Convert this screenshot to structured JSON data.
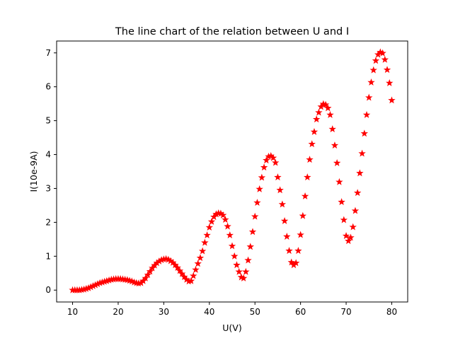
{
  "chart_data": {
    "type": "scatter",
    "title": "The line chart of the relation between U and I",
    "xlabel": "U(V)",
    "ylabel": "I(10e-9A)",
    "xlim": [
      6.5,
      83.5
    ],
    "ylim": [
      -0.35,
      7.35
    ],
    "xticks": [
      10,
      20,
      30,
      40,
      50,
      60,
      70,
      80
    ],
    "yticks": [
      0,
      1,
      2,
      3,
      4,
      5,
      6,
      7
    ],
    "grid": false,
    "marker": "star",
    "marker_color": "#ff0000",
    "series": [
      {
        "points": [
          [
            10.0,
            0.0
          ],
          [
            10.5,
            0.0
          ],
          [
            11.0,
            0.0
          ],
          [
            11.5,
            0.0
          ],
          [
            12.0,
            0.01
          ],
          [
            12.5,
            0.02
          ],
          [
            13.0,
            0.04
          ],
          [
            13.5,
            0.06
          ],
          [
            14.0,
            0.09
          ],
          [
            14.5,
            0.12
          ],
          [
            15.0,
            0.15
          ],
          [
            15.5,
            0.18
          ],
          [
            16.0,
            0.21
          ],
          [
            16.5,
            0.23
          ],
          [
            17.0,
            0.25
          ],
          [
            17.5,
            0.27
          ],
          [
            18.0,
            0.29
          ],
          [
            18.5,
            0.31
          ],
          [
            19.0,
            0.32
          ],
          [
            19.5,
            0.33
          ],
          [
            20.0,
            0.33
          ],
          [
            20.5,
            0.33
          ],
          [
            21.0,
            0.32
          ],
          [
            21.5,
            0.31
          ],
          [
            22.0,
            0.3
          ],
          [
            22.5,
            0.28
          ],
          [
            23.0,
            0.26
          ],
          [
            23.5,
            0.23
          ],
          [
            24.0,
            0.21
          ],
          [
            24.5,
            0.2
          ],
          [
            25.0,
            0.21
          ],
          [
            25.5,
            0.27
          ],
          [
            26.0,
            0.35
          ],
          [
            26.5,
            0.45
          ],
          [
            27.0,
            0.55
          ],
          [
            27.5,
            0.65
          ],
          [
            28.0,
            0.73
          ],
          [
            28.5,
            0.8
          ],
          [
            29.0,
            0.85
          ],
          [
            29.5,
            0.89
          ],
          [
            30.0,
            0.91
          ],
          [
            30.5,
            0.92
          ],
          [
            31.0,
            0.9
          ],
          [
            31.5,
            0.86
          ],
          [
            32.0,
            0.81
          ],
          [
            32.5,
            0.74
          ],
          [
            33.0,
            0.66
          ],
          [
            33.5,
            0.57
          ],
          [
            34.0,
            0.48
          ],
          [
            34.5,
            0.39
          ],
          [
            35.0,
            0.31
          ],
          [
            35.5,
            0.26
          ],
          [
            36.0,
            0.27
          ],
          [
            36.5,
            0.42
          ],
          [
            37.0,
            0.6
          ],
          [
            37.5,
            0.78
          ],
          [
            38.0,
            0.95
          ],
          [
            38.5,
            1.15
          ],
          [
            39.0,
            1.4
          ],
          [
            39.5,
            1.62
          ],
          [
            40.0,
            1.85
          ],
          [
            40.5,
            2.02
          ],
          [
            41.0,
            2.16
          ],
          [
            41.5,
            2.24
          ],
          [
            42.0,
            2.27
          ],
          [
            42.5,
            2.26
          ],
          [
            43.0,
            2.21
          ],
          [
            43.5,
            2.08
          ],
          [
            44.0,
            1.88
          ],
          [
            44.5,
            1.62
          ],
          [
            45.0,
            1.3
          ],
          [
            45.5,
            1.0
          ],
          [
            46.0,
            0.74
          ],
          [
            46.5,
            0.54
          ],
          [
            47.0,
            0.38
          ],
          [
            47.5,
            0.35
          ],
          [
            48.0,
            0.54
          ],
          [
            48.5,
            0.88
          ],
          [
            49.0,
            1.28
          ],
          [
            49.5,
            1.72
          ],
          [
            50.0,
            2.17
          ],
          [
            50.5,
            2.58
          ],
          [
            51.0,
            2.98
          ],
          [
            51.5,
            3.32
          ],
          [
            52.0,
            3.62
          ],
          [
            52.5,
            3.83
          ],
          [
            53.0,
            3.94
          ],
          [
            53.5,
            3.96
          ],
          [
            54.0,
            3.9
          ],
          [
            54.5,
            3.76
          ],
          [
            55.0,
            3.33
          ],
          [
            55.5,
            2.95
          ],
          [
            56.0,
            2.53
          ],
          [
            56.5,
            2.04
          ],
          [
            57.0,
            1.58
          ],
          [
            57.5,
            1.16
          ],
          [
            58.0,
            0.82
          ],
          [
            58.5,
            0.74
          ],
          [
            59.0,
            0.8
          ],
          [
            59.5,
            1.16
          ],
          [
            60.0,
            1.63
          ],
          [
            60.5,
            2.19
          ],
          [
            61.0,
            2.77
          ],
          [
            61.5,
            3.33
          ],
          [
            62.0,
            3.85
          ],
          [
            62.5,
            4.31
          ],
          [
            63.0,
            4.67
          ],
          [
            63.5,
            5.04
          ],
          [
            64.0,
            5.24
          ],
          [
            64.5,
            5.41
          ],
          [
            65.0,
            5.49
          ],
          [
            65.5,
            5.47
          ],
          [
            66.0,
            5.37
          ],
          [
            66.5,
            5.17
          ],
          [
            67.0,
            4.75
          ],
          [
            67.5,
            4.27
          ],
          [
            68.0,
            3.75
          ],
          [
            68.5,
            3.19
          ],
          [
            69.0,
            2.6
          ],
          [
            69.5,
            2.07
          ],
          [
            70.0,
            1.6
          ],
          [
            70.5,
            1.45
          ],
          [
            71.0,
            1.55
          ],
          [
            71.5,
            1.86
          ],
          [
            72.0,
            2.34
          ],
          [
            72.5,
            2.87
          ],
          [
            73.0,
            3.45
          ],
          [
            73.5,
            4.03
          ],
          [
            74.0,
            4.62
          ],
          [
            74.5,
            5.17
          ],
          [
            75.0,
            5.68
          ],
          [
            75.5,
            6.13
          ],
          [
            76.0,
            6.49
          ],
          [
            76.5,
            6.77
          ],
          [
            77.0,
            6.95
          ],
          [
            77.5,
            7.02
          ],
          [
            78.0,
            6.99
          ],
          [
            78.5,
            6.8
          ],
          [
            79.0,
            6.5
          ],
          [
            79.5,
            6.11
          ],
          [
            80.0,
            5.6
          ]
        ]
      }
    ]
  }
}
